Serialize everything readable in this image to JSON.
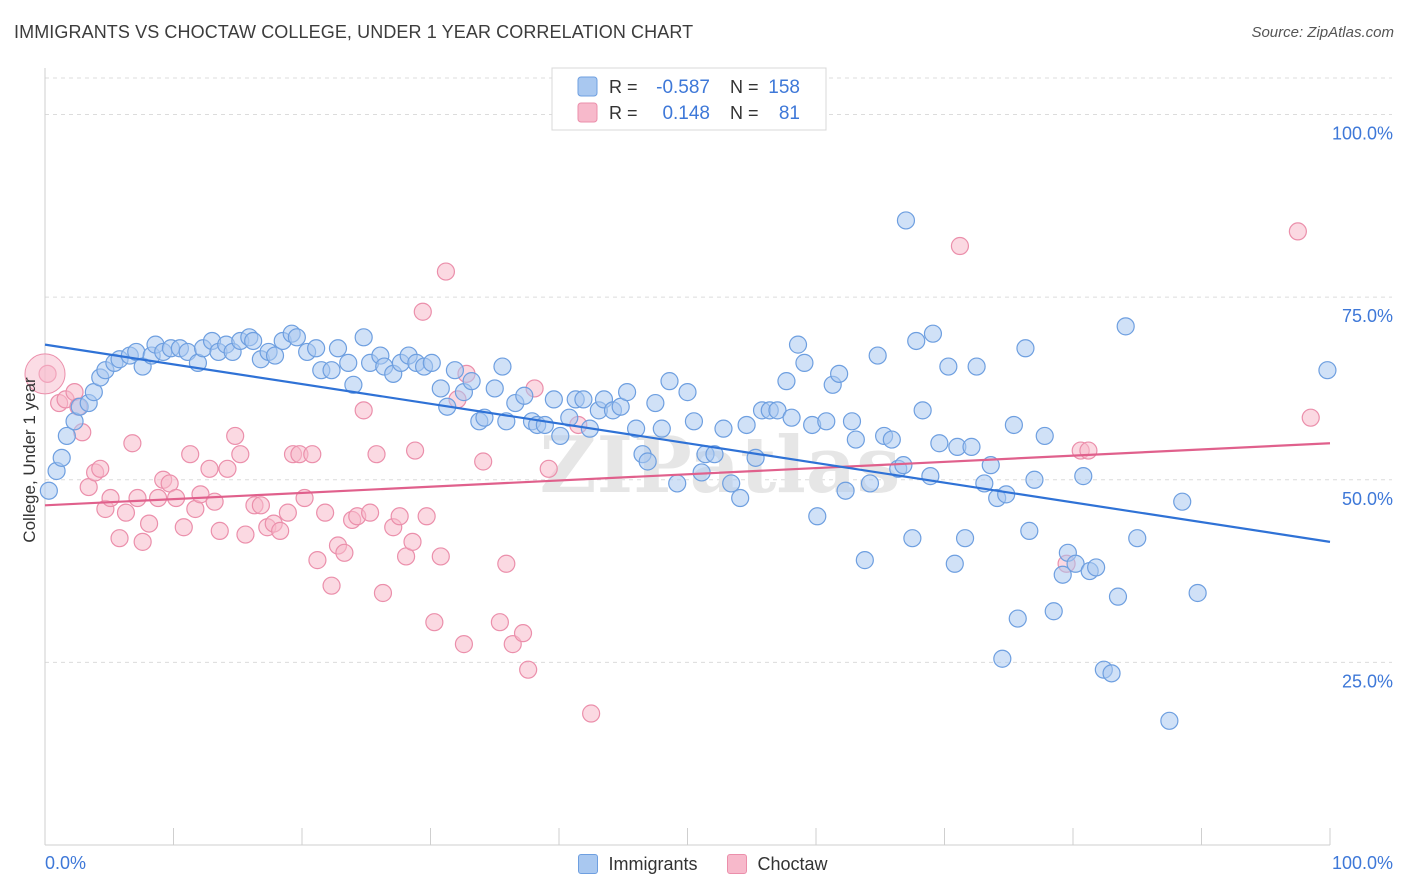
{
  "title": "IMMIGRANTS VS CHOCTAW COLLEGE, UNDER 1 YEAR CORRELATION CHART",
  "source": "Source: ZipAtlas.com",
  "watermark": "ZIPatlas",
  "colors": {
    "blue_fill": "#a9c8f0",
    "blue_stroke": "#6e9fe0",
    "blue_line": "#2f72d6",
    "pink_fill": "#f7b9cb",
    "pink_stroke": "#eb8fab",
    "pink_line": "#e0608c",
    "axis_label": "#3e78d8",
    "grid": "#dcdcdc"
  },
  "legend_box": {
    "rows": [
      {
        "r_label": "R =",
        "r_value": "-0.587",
        "n_label": "N =",
        "n_value": "158"
      },
      {
        "r_label": "R =",
        "r_value": "0.148",
        "n_label": "N =",
        "n_value": "81"
      }
    ]
  },
  "legend_bottom": [
    {
      "label": "Immigrants"
    },
    {
      "label": "Choctaw"
    }
  ],
  "chart_data": {
    "type": "scatter",
    "title": "IMMIGRANTS VS CHOCTAW COLLEGE, UNDER 1 YEAR CORRELATION CHART",
    "xlabel": "",
    "ylabel": "College, Under 1 year",
    "xlim": [
      0,
      100
    ],
    "ylim": [
      0,
      105
    ],
    "x_tick_labels": [
      "0.0%",
      "100.0%"
    ],
    "y_tick_labels": [
      "25.0%",
      "50.0%",
      "75.0%",
      "100.0%"
    ],
    "y_ticks": [
      25,
      50,
      75,
      100
    ],
    "grid": true,
    "legend_position": "top-center",
    "series": [
      {
        "name": "Immigrants",
        "trend": [
          [
            0,
            68.5
          ],
          [
            100,
            41.5
          ]
        ],
        "points": [
          [
            0.3,
            48.5
          ],
          [
            0.9,
            51.2
          ],
          [
            1.3,
            53
          ],
          [
            1.7,
            56
          ],
          [
            2.3,
            58
          ],
          [
            2.7,
            60
          ],
          [
            3.4,
            60.5
          ],
          [
            3.8,
            62
          ],
          [
            4.3,
            64
          ],
          [
            4.7,
            65
          ],
          [
            5.4,
            66
          ],
          [
            5.8,
            66.5
          ],
          [
            6.6,
            67
          ],
          [
            7.1,
            67.5
          ],
          [
            7.6,
            65.5
          ],
          [
            8.3,
            67
          ],
          [
            8.6,
            68.5
          ],
          [
            9.2,
            67.5
          ],
          [
            9.8,
            68
          ],
          [
            10.5,
            68
          ],
          [
            11.1,
            67.5
          ],
          [
            11.9,
            66
          ],
          [
            12.3,
            68
          ],
          [
            13,
            69
          ],
          [
            13.5,
            67.5
          ],
          [
            14.1,
            68.5
          ],
          [
            14.6,
            67.5
          ],
          [
            15.2,
            69
          ],
          [
            15.9,
            69.5
          ],
          [
            16.2,
            69
          ],
          [
            16.8,
            66.5
          ],
          [
            17.4,
            67.5
          ],
          [
            17.9,
            67
          ],
          [
            18.5,
            69
          ],
          [
            19.2,
            70
          ],
          [
            19.6,
            69.5
          ],
          [
            20.4,
            67.5
          ],
          [
            21.1,
            68
          ],
          [
            21.5,
            65
          ],
          [
            22.3,
            65
          ],
          [
            22.8,
            68
          ],
          [
            23.6,
            66
          ],
          [
            24,
            63
          ],
          [
            24.8,
            69.5
          ],
          [
            25.3,
            66
          ],
          [
            26.1,
            67
          ],
          [
            26.4,
            65.5
          ],
          [
            27.1,
            64.5
          ],
          [
            27.7,
            66
          ],
          [
            28.3,
            67
          ],
          [
            28.9,
            66
          ],
          [
            29.5,
            65.5
          ],
          [
            30.1,
            66
          ],
          [
            30.8,
            62.5
          ],
          [
            31.3,
            60
          ],
          [
            31.9,
            65
          ],
          [
            32.6,
            62
          ],
          [
            33.2,
            63.5
          ],
          [
            33.8,
            58
          ],
          [
            34.2,
            58.5
          ],
          [
            35,
            62.5
          ],
          [
            35.6,
            65.5
          ],
          [
            35.9,
            58
          ],
          [
            36.6,
            60.5
          ],
          [
            37.3,
            61.5
          ],
          [
            37.9,
            58
          ],
          [
            38.3,
            57.5
          ],
          [
            38.9,
            57.5
          ],
          [
            39.6,
            61
          ],
          [
            40.1,
            56
          ],
          [
            40.8,
            58.5
          ],
          [
            41.3,
            61
          ],
          [
            41.9,
            61
          ],
          [
            42.4,
            57
          ],
          [
            43.1,
            59.5
          ],
          [
            43.5,
            61
          ],
          [
            44.2,
            59.5
          ],
          [
            44.8,
            60
          ],
          [
            45.3,
            62
          ],
          [
            46,
            57
          ],
          [
            46.5,
            53.5
          ],
          [
            46.9,
            52.5
          ],
          [
            47.5,
            60.5
          ],
          [
            48,
            57
          ],
          [
            48.6,
            63.5
          ],
          [
            49.2,
            49.5
          ],
          [
            50,
            62
          ],
          [
            50.5,
            58
          ],
          [
            51.1,
            51
          ],
          [
            51.4,
            53.5
          ],
          [
            52.1,
            53.5
          ],
          [
            52.8,
            57
          ],
          [
            53.4,
            49.5
          ],
          [
            54.1,
            47.5
          ],
          [
            54.6,
            57.5
          ],
          [
            55.3,
            53
          ],
          [
            55.8,
            59.5
          ],
          [
            56.4,
            59.5
          ],
          [
            57,
            59.5
          ],
          [
            57.7,
            63.5
          ],
          [
            58.1,
            58.5
          ],
          [
            58.6,
            68.5
          ],
          [
            59.1,
            66
          ],
          [
            59.7,
            57.5
          ],
          [
            60.1,
            45
          ],
          [
            60.8,
            58
          ],
          [
            61.3,
            63
          ],
          [
            61.8,
            64.5
          ],
          [
            62.3,
            48.5
          ],
          [
            62.8,
            58
          ],
          [
            63.1,
            55.5
          ],
          [
            63.8,
            39
          ],
          [
            64.2,
            49.5
          ],
          [
            64.8,
            67
          ],
          [
            65.3,
            56
          ],
          [
            65.9,
            55.5
          ],
          [
            66.4,
            51.5
          ],
          [
            66.8,
            52
          ],
          [
            67,
            85.5
          ],
          [
            67.5,
            42
          ],
          [
            67.8,
            69
          ],
          [
            68.3,
            59.5
          ],
          [
            68.9,
            50.5
          ],
          [
            69.1,
            70
          ],
          [
            69.6,
            55
          ],
          [
            70.3,
            65.5
          ],
          [
            70.8,
            38.5
          ],
          [
            71,
            54.5
          ],
          [
            71.6,
            42
          ],
          [
            72.1,
            54.5
          ],
          [
            72.5,
            65.5
          ],
          [
            73.1,
            49.5
          ],
          [
            73.6,
            52
          ],
          [
            74.1,
            47.5
          ],
          [
            74.5,
            25.5
          ],
          [
            74.8,
            48
          ],
          [
            75.4,
            57.5
          ],
          [
            75.7,
            31
          ],
          [
            76.3,
            68
          ],
          [
            76.6,
            43
          ],
          [
            77,
            50
          ],
          [
            77.8,
            56
          ],
          [
            78.5,
            32
          ],
          [
            79.2,
            37
          ],
          [
            79.6,
            40
          ],
          [
            80.2,
            38.5
          ],
          [
            80.8,
            50.5
          ],
          [
            81.3,
            37.5
          ],
          [
            81.8,
            38
          ],
          [
            82.4,
            24
          ],
          [
            83,
            23.5
          ],
          [
            83.5,
            34
          ],
          [
            84.1,
            71
          ],
          [
            85,
            42
          ],
          [
            87.5,
            17
          ],
          [
            88.5,
            47
          ],
          [
            89.7,
            34.5
          ],
          [
            99.8,
            65
          ]
        ]
      },
      {
        "name": "Choctaw",
        "trend": [
          [
            0,
            46.5
          ],
          [
            100,
            55
          ]
        ],
        "points": [
          [
            0.2,
            64.5
          ],
          [
            1.1,
            60.5
          ],
          [
            1.6,
            61
          ],
          [
            2.3,
            62
          ],
          [
            2.6,
            60
          ],
          [
            2.9,
            56.5
          ],
          [
            3.4,
            49
          ],
          [
            3.9,
            51
          ],
          [
            4.3,
            51.5
          ],
          [
            4.7,
            46
          ],
          [
            5.1,
            47.5
          ],
          [
            5.8,
            42
          ],
          [
            6.3,
            45.5
          ],
          [
            6.8,
            55
          ],
          [
            7.2,
            47.5
          ],
          [
            7.6,
            41.5
          ],
          [
            8.1,
            44
          ],
          [
            8.8,
            47.5
          ],
          [
            9.2,
            50
          ],
          [
            9.7,
            49.5
          ],
          [
            10.2,
            47.5
          ],
          [
            10.8,
            43.5
          ],
          [
            11.3,
            53.5
          ],
          [
            11.7,
            46
          ],
          [
            12.1,
            48
          ],
          [
            12.8,
            51.5
          ],
          [
            13.2,
            47
          ],
          [
            13.6,
            43
          ],
          [
            14.2,
            51.5
          ],
          [
            14.8,
            56
          ],
          [
            15.2,
            53.5
          ],
          [
            15.6,
            42.5
          ],
          [
            16.3,
            46.5
          ],
          [
            16.8,
            46.5
          ],
          [
            17.3,
            43.5
          ],
          [
            17.8,
            44
          ],
          [
            18.3,
            43
          ],
          [
            18.9,
            45.5
          ],
          [
            19.3,
            53.5
          ],
          [
            19.8,
            53.5
          ],
          [
            20.2,
            47.5
          ],
          [
            20.8,
            53.5
          ],
          [
            21.2,
            39
          ],
          [
            21.8,
            45.5
          ],
          [
            22.3,
            35.5
          ],
          [
            22.8,
            41
          ],
          [
            23.3,
            40
          ],
          [
            23.9,
            44.5
          ],
          [
            24.3,
            45
          ],
          [
            24.8,
            59.5
          ],
          [
            25.3,
            45.5
          ],
          [
            25.8,
            53.5
          ],
          [
            26.3,
            34.5
          ],
          [
            27.1,
            43.5
          ],
          [
            27.6,
            45
          ],
          [
            28.1,
            39.5
          ],
          [
            28.6,
            41.5
          ],
          [
            28.8,
            54
          ],
          [
            29.4,
            73
          ],
          [
            29.7,
            45
          ],
          [
            30.3,
            30.5
          ],
          [
            30.8,
            39.5
          ],
          [
            31.2,
            78.5
          ],
          [
            32.1,
            61
          ],
          [
            32.6,
            27.5
          ],
          [
            32.8,
            64.5
          ],
          [
            34.1,
            52.5
          ],
          [
            35.4,
            30.5
          ],
          [
            35.9,
            38.5
          ],
          [
            36.4,
            27.5
          ],
          [
            37.2,
            29
          ],
          [
            37.6,
            24
          ],
          [
            38.1,
            62.5
          ],
          [
            39.2,
            51.5
          ],
          [
            41.5,
            57.5
          ],
          [
            42.5,
            18
          ],
          [
            71.2,
            82
          ],
          [
            79.5,
            38.5
          ],
          [
            80.6,
            54
          ],
          [
            81.2,
            54
          ],
          [
            97.5,
            84
          ],
          [
            98.5,
            58.5
          ]
        ]
      }
    ]
  }
}
